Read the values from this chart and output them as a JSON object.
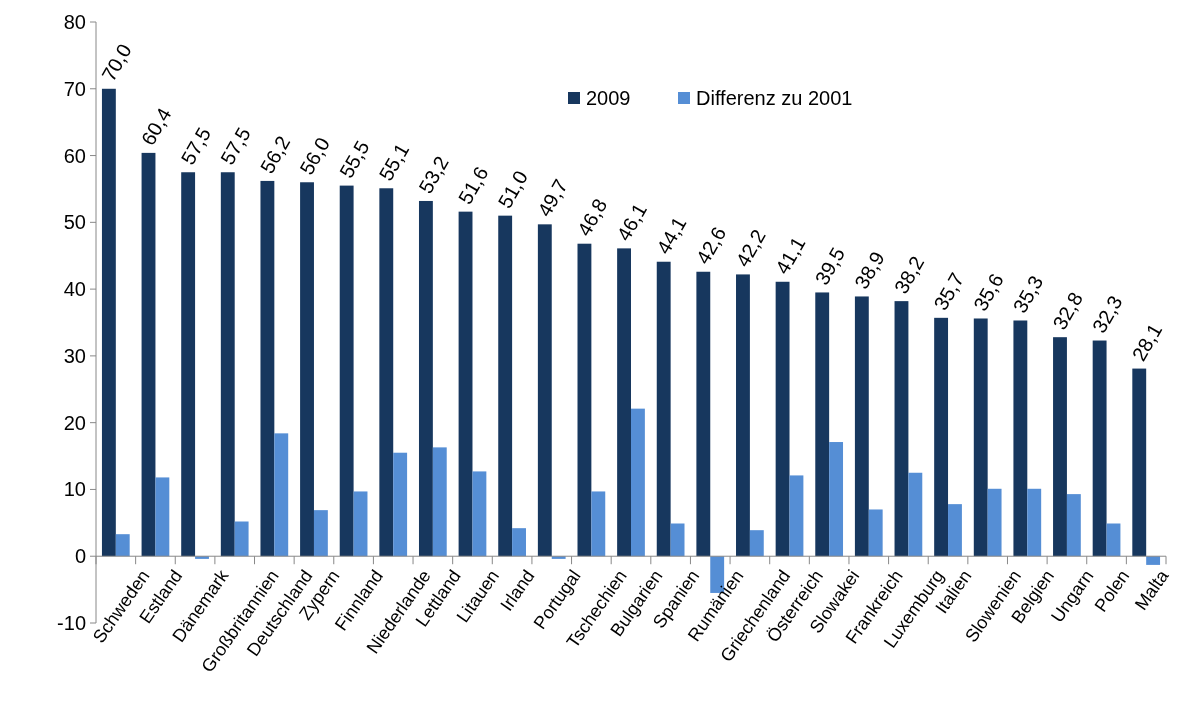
{
  "chart_data": {
    "type": "bar",
    "categories": [
      "Schweden",
      "Estland",
      "Dänemark",
      "Großbritannien",
      "Deutschland",
      "Zypern",
      "Finnland",
      "Niederlande",
      "Lettland",
      "Litauen",
      "Irland",
      "Portugal",
      "Tschechien",
      "Bulgarien",
      "Spanien",
      "Rumänien",
      "Griechenland",
      "Österreich",
      "Slowakei",
      "Frankreich",
      "Luxemburg",
      "Italien",
      "Slowenien",
      "Belgien",
      "Ungarn",
      "Polen",
      "Malta"
    ],
    "series": [
      {
        "name": "2009",
        "color": "#17375e",
        "values": [
          70.0,
          60.4,
          57.5,
          57.5,
          56.2,
          56.0,
          55.5,
          55.1,
          53.2,
          51.6,
          51.0,
          49.7,
          46.8,
          46.1,
          44.1,
          42.6,
          42.2,
          41.1,
          39.5,
          38.9,
          38.2,
          35.7,
          35.6,
          35.3,
          32.8,
          32.3,
          28.1
        ],
        "value_labels": [
          "70,0",
          "60,4",
          "57,5",
          "57,5",
          "56,2",
          "56,0",
          "55,5",
          "55,1",
          "53,2",
          "51,6",
          "51,0",
          "49,7",
          "46,8",
          "46,1",
          "44,1",
          "42,6",
          "42,2",
          "41,1",
          "39,5",
          "38,9",
          "38,2",
          "35,7",
          "35,6",
          "35,3",
          "32,8",
          "32,3",
          "28,1"
        ]
      },
      {
        "name": "Differenz zu 2001",
        "color": "#558ed5",
        "values": [
          3.3,
          11.8,
          -0.4,
          5.2,
          18.4,
          6.9,
          9.7,
          15.5,
          16.3,
          12.7,
          4.2,
          -0.4,
          9.7,
          22.1,
          4.9,
          -5.5,
          3.9,
          12.1,
          17.1,
          7.0,
          12.5,
          7.8,
          10.1,
          10.1,
          9.3,
          4.9,
          -1.3
        ]
      }
    ],
    "ylim": [
      -10,
      80
    ],
    "yticks": [
      -10,
      0,
      10,
      20,
      30,
      40,
      50,
      60,
      70,
      80
    ],
    "grid": false,
    "legend": "top"
  }
}
